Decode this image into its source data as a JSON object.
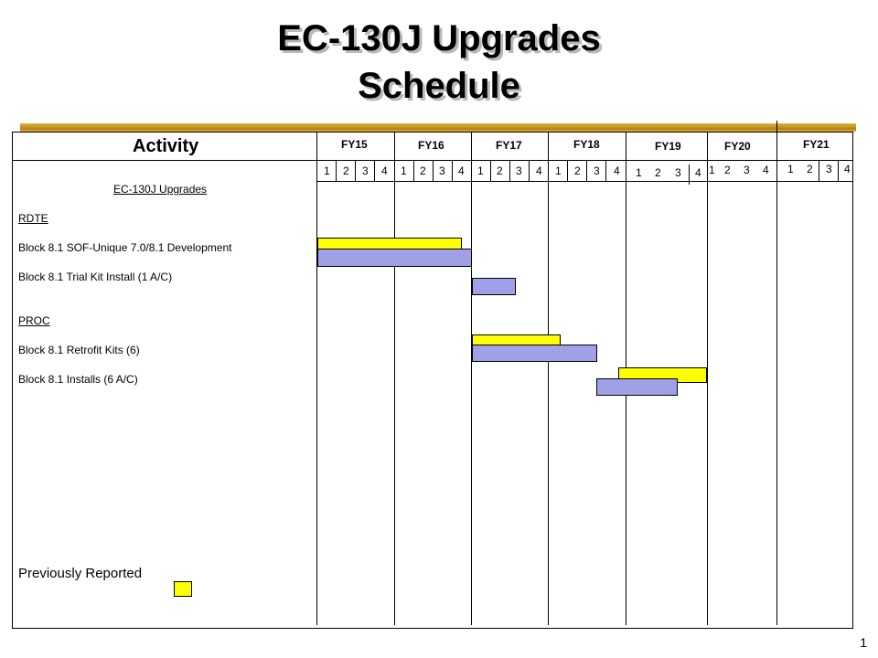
{
  "title_line1": "EC-130J Upgrades",
  "title_line2": "Schedule",
  "activity_header": "Activity",
  "fiscal_years": [
    "FY15",
    "FY16",
    "FY17",
    "FY18",
    "FY19",
    "FY20",
    "FY21"
  ],
  "quarters": [
    "1",
    "2",
    "3",
    "4"
  ],
  "rows": {
    "section_title": "EC-130J  Upgrades",
    "rdte": "RDTE",
    "block81_dev": "Block 8.1 SOF-Unique  7.0/8.1 Development",
    "block81_trial": "Block 8.1 Trial  Kit Install (1 A/C)",
    "proc": "PROC",
    "block81_retrofit": "Block 8.1 Retrofit  Kits (6)",
    "block81_installs": "Block 8.1 Installs  (6 A/C)"
  },
  "schedule": [
    {
      "activity": "Block 8.1 SOF-Unique  7.0/8.1 Development",
      "previously_reported": {
        "start": "FY15 Q1",
        "end": "FY16 Q4"
      },
      "current": {
        "start": "FY15 Q1",
        "end": "FY16 Q4"
      }
    },
    {
      "activity": "Block 8.1 Trial  Kit Install (1 A/C)",
      "current": {
        "start": "FY17 Q1",
        "end": "FY17 Q2"
      }
    },
    {
      "activity": "Block 8.1 Retrofit  Kits (6)",
      "previously_reported": {
        "start": "FY17 Q1",
        "end": "FY17 Q4"
      },
      "current": {
        "start": "FY17 Q1",
        "end": "FY18 Q2"
      }
    },
    {
      "activity": "Block 8.1 Installs  (6 A/C)",
      "previously_reported": {
        "start": "FY18 Q4",
        "end": "FY19 Q4"
      },
      "current": {
        "start": "FY18 Q3",
        "end": "FY19 Q3"
      }
    }
  ],
  "legend": {
    "previously_reported": "Previously  Reported"
  },
  "colors": {
    "previously_reported": "#ffff00",
    "current": "#a0a0e6",
    "gold_rule": "#c8961e"
  },
  "page_number": "1"
}
